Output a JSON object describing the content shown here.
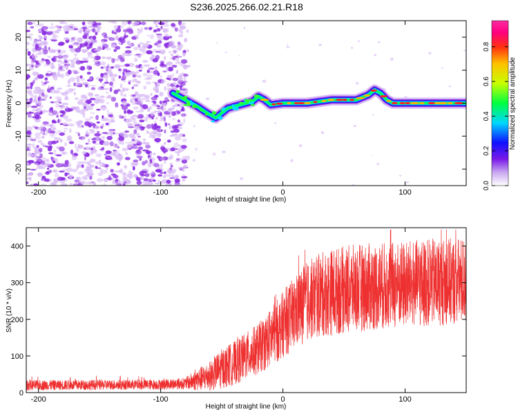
{
  "title": "S236.2025.266.02.21.R18",
  "chart_data": [
    {
      "type": "heatmap",
      "name": "spectrogram",
      "xlabel": "Height of straight line (km)",
      "ylabel": "Frequency (Hz)",
      "xlim": [
        -210,
        150
      ],
      "ylim": [
        -25,
        25
      ],
      "xticks": [
        -200,
        -100,
        0,
        100
      ],
      "xtick_labels": [
        "-200",
        "-100",
        "0",
        "100"
      ],
      "yticks": [
        -20,
        -10,
        0,
        10,
        20
      ],
      "ytick_labels": [
        "-20",
        "-10",
        "0",
        "10",
        "20"
      ],
      "noise_region_x": [
        -210,
        -78
      ],
      "ridge": {
        "x": [
          -90,
          -80,
          -70,
          -62,
          -55,
          -50,
          -45,
          -40,
          -35,
          -30,
          -25,
          -20,
          -15,
          -10,
          0,
          10,
          20,
          30,
          40,
          50,
          60,
          70,
          75,
          80,
          85,
          90,
          100,
          110,
          120,
          130,
          140,
          150
        ],
        "y": [
          3,
          1,
          -1,
          -3,
          -4.5,
          -3,
          -1.5,
          -1,
          -0.5,
          0,
          0.5,
          2,
          1,
          -0.5,
          0,
          0,
          0,
          0.5,
          1,
          1,
          1,
          2.5,
          4,
          3,
          1,
          0,
          0,
          0,
          0,
          0,
          0,
          0
        ]
      },
      "colorbar": {
        "label": "Normalized spectral amplitude",
        "range": [
          0.0,
          0.95
        ],
        "ticks": [
          0.0,
          0.2,
          0.4,
          0.6,
          0.8
        ],
        "tick_labels": [
          "0.0",
          "0.2",
          "0.4",
          "0.6",
          "0.8"
        ]
      }
    },
    {
      "type": "line",
      "name": "snr",
      "xlabel": "Height of straight line (km)",
      "ylabel": "SNR (10 * v/v)",
      "xlim": [
        -210,
        150
      ],
      "ylim": [
        0,
        450
      ],
      "xticks": [
        -200,
        -100,
        0,
        100
      ],
      "xtick_labels": [
        "-200",
        "-100",
        "0",
        "100"
      ],
      "yticks": [
        0,
        100,
        200,
        300,
        400
      ],
      "ytick_labels": [
        "0",
        "100",
        "200",
        "300",
        "400"
      ],
      "envelope": {
        "x": [
          -210,
          -100,
          -80,
          -70,
          -60,
          -50,
          -40,
          -30,
          -20,
          -10,
          0,
          10,
          20,
          30,
          40,
          60,
          80,
          100,
          120,
          150
        ],
        "mean": [
          20,
          22,
          25,
          35,
          45,
          65,
          80,
          100,
          120,
          150,
          185,
          220,
          250,
          265,
          275,
          285,
          290,
          295,
          300,
          305
        ],
        "spread": [
          14,
          14,
          16,
          30,
          40,
          55,
          60,
          65,
          70,
          80,
          90,
          100,
          110,
          115,
          120,
          120,
          120,
          120,
          120,
          120
        ]
      }
    }
  ],
  "colors": {
    "snr_line": "#ee3030",
    "noise_light": "#d7b8f5",
    "noise_dark": "#8a2be2"
  }
}
